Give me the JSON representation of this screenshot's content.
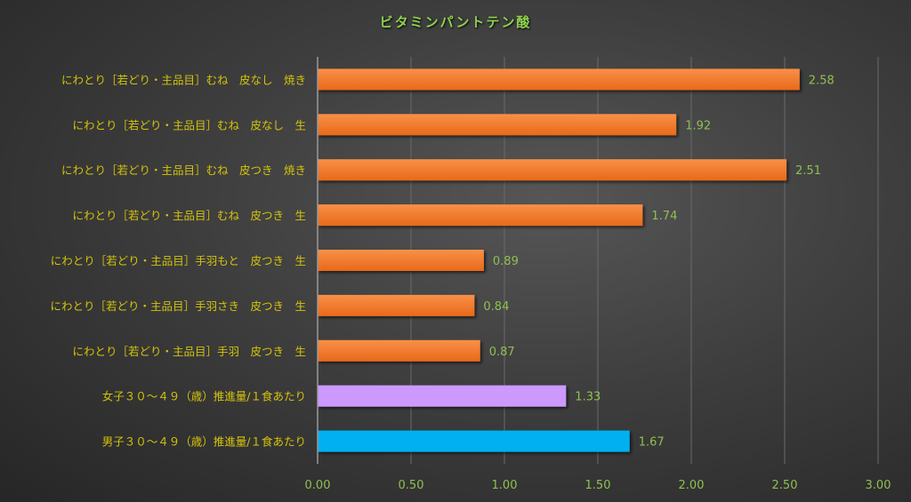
{
  "chart_data": {
    "type": "bar",
    "orientation": "horizontal",
    "title": "ビタミンパントテン酸",
    "categories": [
      "にわとり［若どり・主品目］むね　皮なし　焼き",
      "にわとり［若どり・主品目］むね　皮なし　生",
      "にわとり［若どり・主品目］むね　皮つき　焼き",
      "にわとり［若どり・主品目］むね　皮つき　生",
      "にわとり［若どり・主品目］手羽もと　皮つき　生",
      "にわとり［若どり・主品目］手羽さき　皮つき　生",
      "にわとり［若どり・主品目］手羽　皮つき　生",
      "女子３０～４９（歳）推進量/１食あたり",
      "男子３０～４９（歳）推進量/１食あたり"
    ],
    "values": [
      2.58,
      1.92,
      2.51,
      1.74,
      0.89,
      0.84,
      0.87,
      1.33,
      1.67
    ],
    "value_labels": [
      "2.58",
      "1.92",
      "2.51",
      "1.74",
      "0.89",
      "0.84",
      "0.87",
      "1.33",
      "1.67"
    ],
    "bar_colors": [
      "#f07c2a",
      "#f07c2a",
      "#f07c2a",
      "#f07c2a",
      "#f07c2a",
      "#f07c2a",
      "#f07c2a",
      "#cc99ff",
      "#00b0f0"
    ],
    "xlim": [
      0,
      3.0
    ],
    "xticks": [
      0,
      0.5,
      1.0,
      1.5,
      2.0,
      2.5,
      3.0
    ],
    "xtick_labels": [
      "0.00",
      "0.50",
      "1.00",
      "1.50",
      "2.00",
      "2.50",
      "3.00"
    ],
    "xlabel": "",
    "ylabel": "",
    "grid": true,
    "legend": "none",
    "colors": {
      "category_label": "#d4c40a",
      "value_label": "#8fc050",
      "title": "#8fd14f",
      "grid": "#6a6a6a"
    }
  }
}
